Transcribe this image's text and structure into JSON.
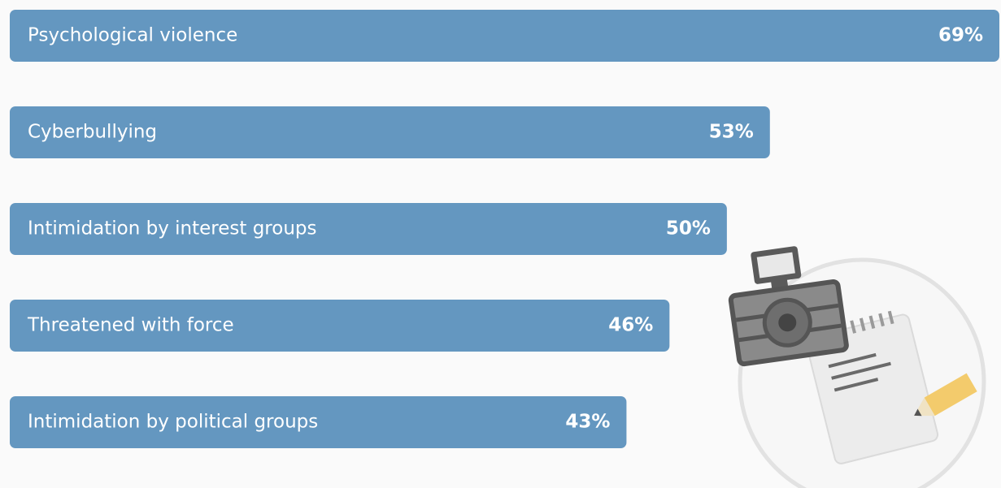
{
  "chart_data": {
    "type": "bar",
    "orientation": "horizontal",
    "categories": [
      "Psychological violence",
      "Cyberbullying",
      "Intimidation by interest groups",
      "Threatened with force",
      "Intimidation by political groups"
    ],
    "values": [
      69,
      53,
      50,
      46,
      43
    ],
    "value_labels": [
      "69%",
      "53%",
      "50%",
      "46%",
      "43%"
    ],
    "color": "#6497c0"
  }
}
